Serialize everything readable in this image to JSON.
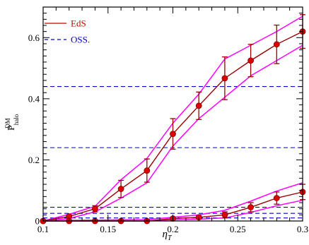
{
  "chart_data": {
    "type": "line",
    "xlabel": "η",
    "xlabel_sub": "T",
    "ylabel": "P",
    "ylabel_sup": "DM",
    "ylabel_sub": "halo",
    "xlim": [
      0.1,
      0.3
    ],
    "ylim": [
      0,
      0.7
    ],
    "x_ticks": [
      0.1,
      0.15,
      0.2,
      0.25,
      0.3
    ],
    "x_tick_labels": [
      "0.1",
      "0.15",
      "0.2",
      "0.25",
      "0.3"
    ],
    "y_ticks": [
      0,
      0.2,
      0.4,
      0.6
    ],
    "y_tick_labels": [
      "0",
      "0.2",
      "0.4",
      "0.6"
    ],
    "legend": {
      "position": "top-left",
      "entries": [
        {
          "label": "EdS",
          "color": "#cc0000",
          "style": "solid"
        },
        {
          "label": "OSS.",
          "color": "#0000cc",
          "style": "dashed"
        }
      ]
    },
    "series": [
      {
        "name": "EdS",
        "color": "#990000",
        "marker_color": "#dd0000",
        "x": [
          0.1,
          0.12,
          0.14,
          0.16,
          0.18,
          0.2,
          0.22,
          0.24,
          0.26,
          0.28,
          0.3
        ],
        "y": [
          0.0,
          0.015,
          0.04,
          0.105,
          0.165,
          0.285,
          0.377,
          0.467,
          0.525,
          0.578,
          0.62
        ],
        "err": [
          0.0,
          0.005,
          0.01,
          0.028,
          0.038,
          0.05,
          0.045,
          0.07,
          0.053,
          0.063,
          0.055
        ]
      },
      {
        "color": "#990000",
        "marker_color": "#dd0000",
        "x": [
          0.1,
          0.12,
          0.14,
          0.16,
          0.18,
          0.2,
          0.22,
          0.24,
          0.26,
          0.28,
          0.3
        ],
        "y": [
          0.0,
          0.0,
          0.0,
          0.0,
          0.0,
          0.008,
          0.012,
          0.02,
          0.045,
          0.075,
          0.095
        ],
        "err": [
          0.0,
          0.0,
          0.0,
          0.0,
          0.0,
          0.003,
          0.005,
          0.01,
          0.015,
          0.02,
          0.025
        ]
      }
    ],
    "bands": [
      {
        "color": "#ff00ff",
        "x": [
          0.1,
          0.12,
          0.14,
          0.16,
          0.18,
          0.2,
          0.22,
          0.24,
          0.26,
          0.28,
          0.3
        ],
        "upper": [
          0.0,
          0.022,
          0.048,
          0.135,
          0.205,
          0.32,
          0.415,
          0.53,
          0.575,
          0.62,
          0.67
        ],
        "lower": [
          0.0,
          0.008,
          0.03,
          0.075,
          0.125,
          0.245,
          0.335,
          0.405,
          0.475,
          0.525,
          0.575
        ]
      },
      {
        "color": "#ff00ff",
        "x": [
          0.1,
          0.12,
          0.14,
          0.16,
          0.18,
          0.2,
          0.22,
          0.24,
          0.26,
          0.28,
          0.3
        ],
        "upper": [
          0.0,
          0.002,
          0.003,
          0.004,
          0.005,
          0.012,
          0.02,
          0.035,
          0.065,
          0.098,
          0.125
        ],
        "lower": [
          0.0,
          0.0,
          0.0,
          0.0,
          0.0,
          0.004,
          0.006,
          0.01,
          0.028,
          0.05,
          0.068
        ]
      }
    ],
    "reference_lines": {
      "color": "#0000cc",
      "style": "dashed",
      "y": [
        0.44,
        0.24,
        0.045,
        0.025,
        0.01
      ]
    }
  }
}
